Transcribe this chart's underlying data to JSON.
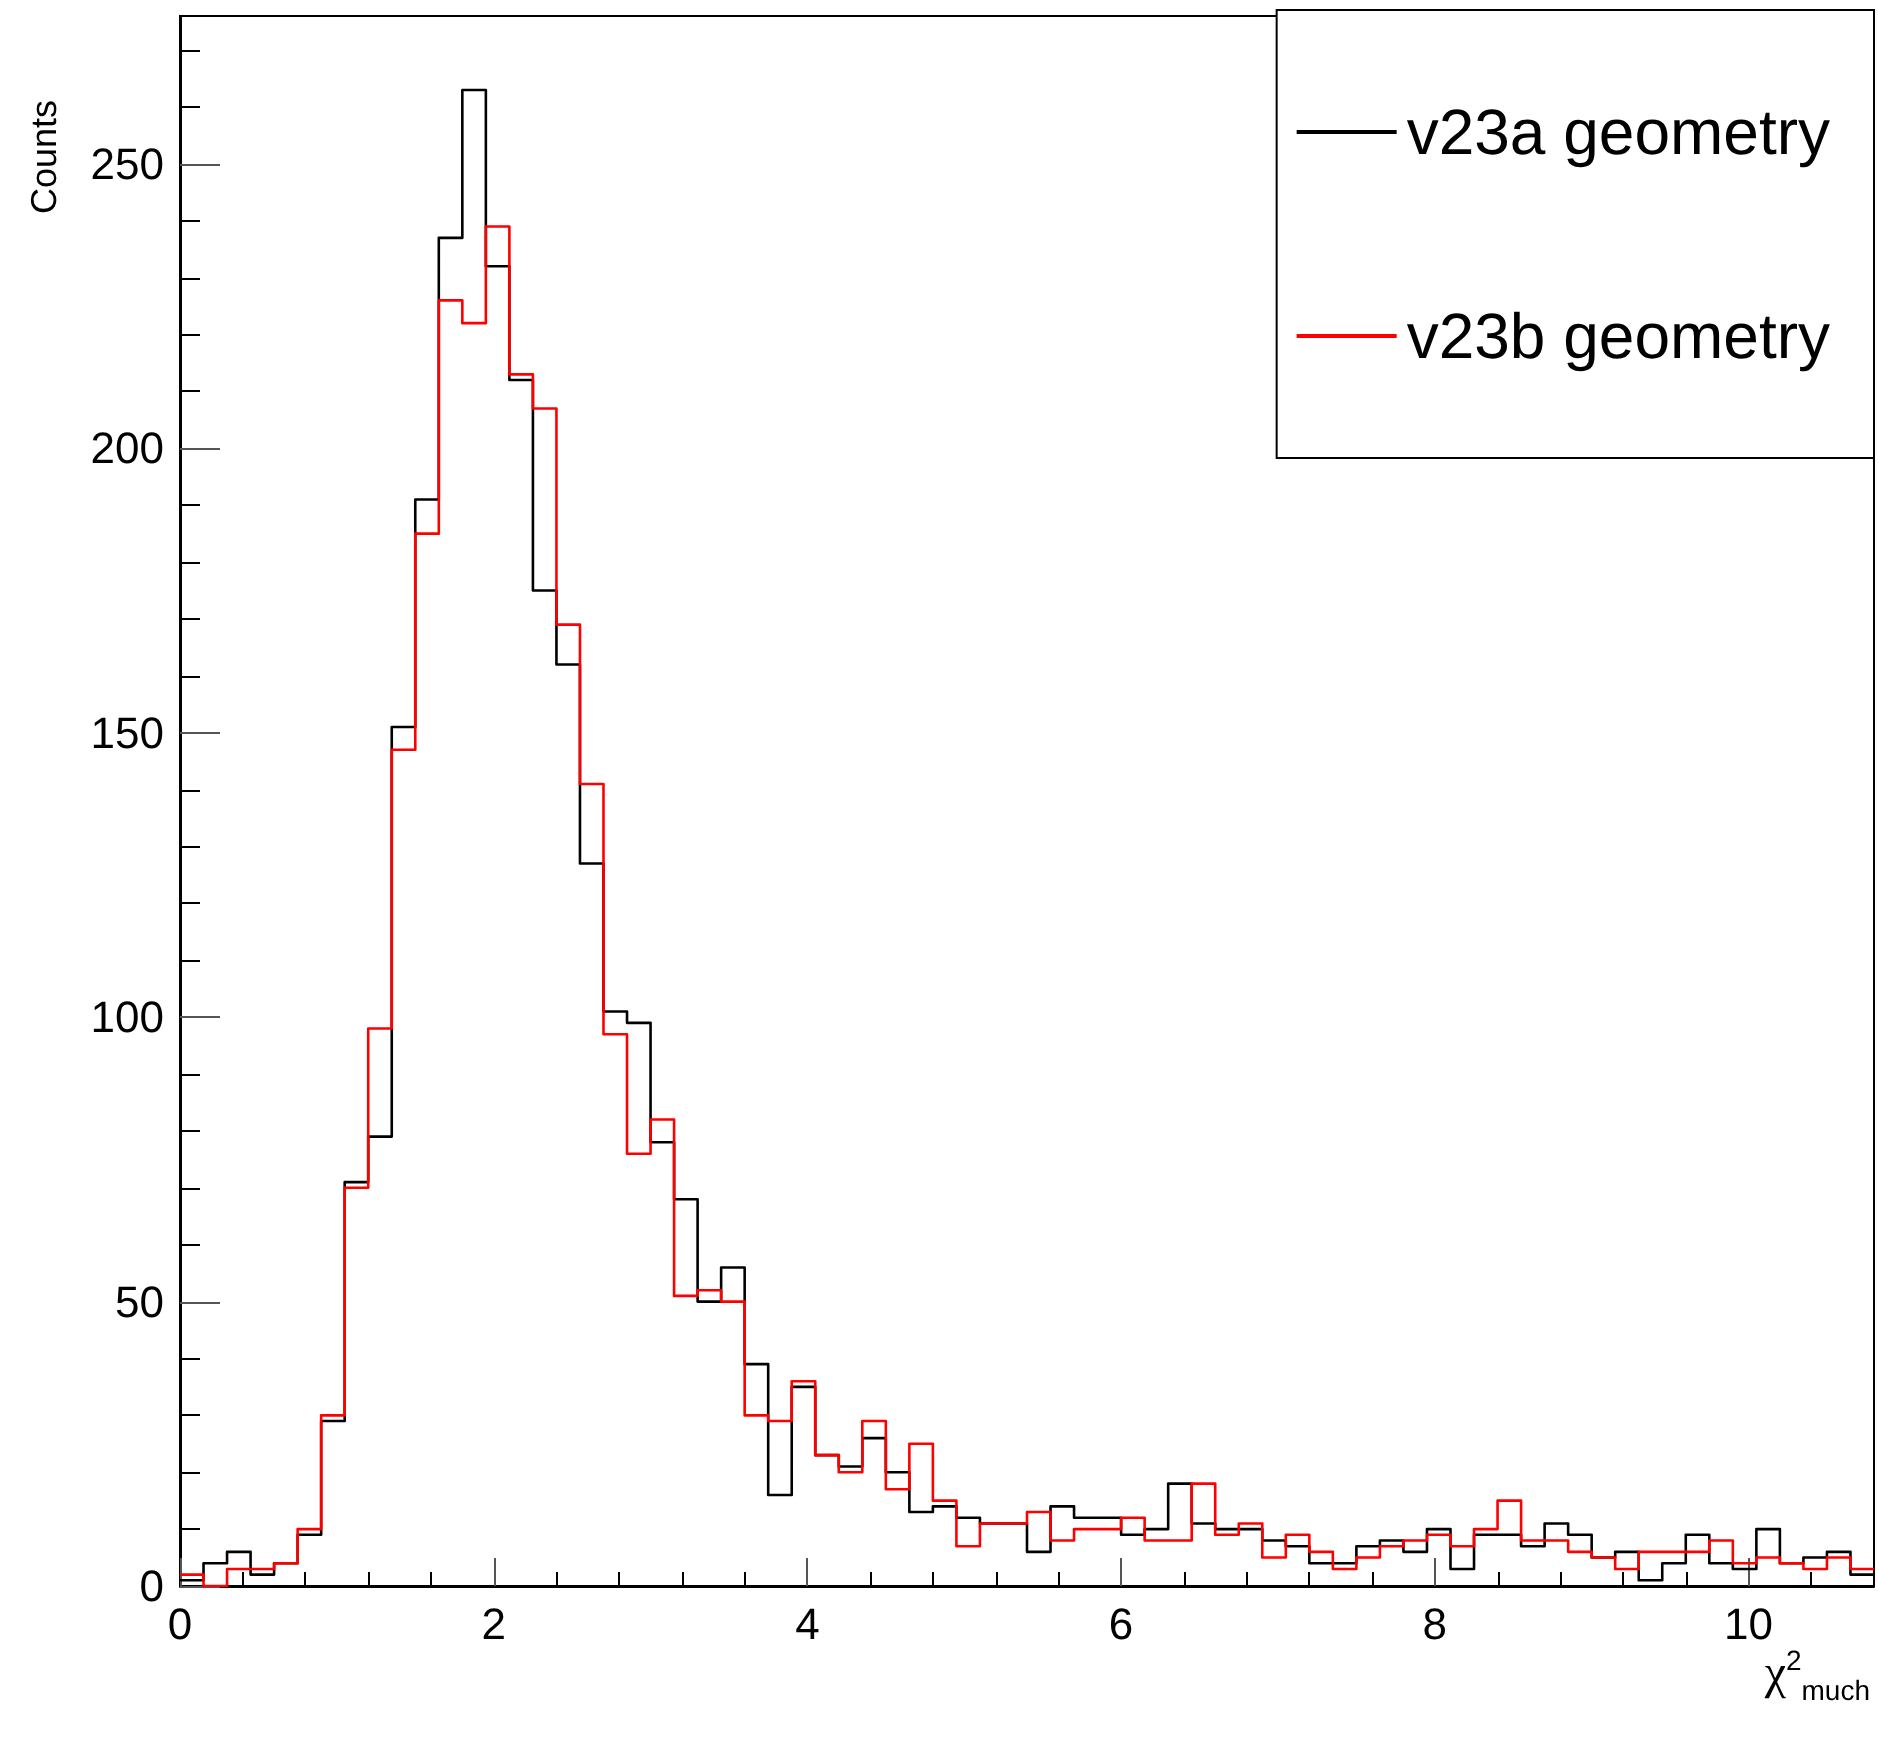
{
  "chart_data": {
    "type": "histogram",
    "xlabel": "χ$^{2}$$_{much}$",
    "ylabel": "Counts",
    "bins": [
      0,
      0.15,
      0.3,
      0.45,
      0.6,
      0.75,
      0.9,
      1.05,
      1.2,
      1.35,
      1.5,
      1.65,
      1.8,
      1.95,
      2.1,
      2.25,
      2.4,
      2.55,
      2.7,
      2.85,
      3,
      3.15,
      3.3,
      3.45,
      3.6,
      3.75,
      3.9,
      4.05,
      4.2,
      4.35,
      4.5,
      4.65,
      4.8,
      4.95,
      5.1,
      5.25,
      5.4,
      5.55,
      5.7,
      5.85,
      6,
      6.15,
      6.3,
      6.45,
      6.6,
      6.75,
      6.9,
      7.05,
      7.2,
      7.35,
      7.5,
      7.65,
      7.8,
      7.95,
      8.1,
      8.25,
      8.4,
      8.55,
      8.7,
      8.85,
      9,
      9.15,
      9.3,
      9.45,
      9.6,
      9.75,
      9.9,
      10.05,
      10.2,
      10.35,
      10.5,
      10.65,
      10.8
    ],
    "series": [
      {
        "name": "v23a geometry",
        "color": "#000000",
        "values": [
          1,
          4,
          6,
          2,
          4,
          9,
          29,
          71,
          79,
          151,
          191,
          237,
          263,
          232,
          212,
          175,
          162,
          127,
          101,
          99,
          78,
          68,
          50,
          56,
          39,
          16,
          35,
          23,
          21,
          26,
          20,
          13,
          14,
          12,
          11,
          11,
          6,
          14,
          12,
          12,
          9,
          10,
          18,
          11,
          10,
          10,
          8,
          7,
          4,
          4,
          7,
          8,
          6,
          10,
          3,
          9,
          9,
          7,
          11,
          9,
          5,
          6,
          1,
          4,
          9,
          4,
          3,
          10,
          4,
          5,
          6,
          2
        ]
      },
      {
        "name": "v23b geometry",
        "color": "#ff0000",
        "values": [
          2,
          0,
          3,
          3,
          4,
          10,
          30,
          70,
          98,
          147,
          185,
          226,
          222,
          239,
          213,
          207,
          169,
          141,
          97,
          76,
          82,
          51,
          52,
          50,
          30,
          29,
          36,
          23,
          20,
          29,
          17,
          25,
          15,
          7,
          11,
          11,
          13,
          8,
          10,
          10,
          12,
          8,
          8,
          18,
          9,
          11,
          5,
          9,
          6,
          3,
          5,
          7,
          8,
          9,
          7,
          10,
          15,
          8,
          8,
          6,
          5,
          3,
          6,
          6,
          6,
          8,
          4,
          5,
          4,
          3,
          5,
          3
        ]
      }
    ],
    "xlim": [
      0,
      10.8
    ],
    "xticks": [
      0,
      2,
      4,
      6,
      8,
      10
    ],
    "ylim": [
      0,
      276
    ],
    "yticks": [
      0,
      50,
      100,
      150,
      200,
      250
    ],
    "legend": "top right",
    "grid": false
  }
}
